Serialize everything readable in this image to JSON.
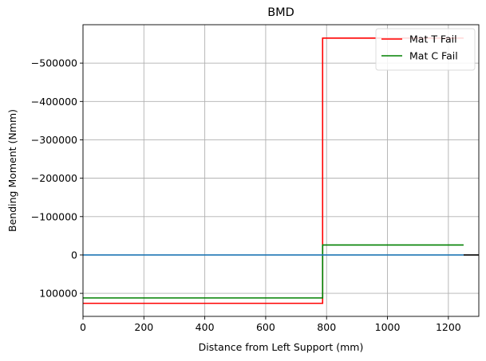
{
  "chart_data": {
    "type": "line",
    "title": "BMD",
    "xlabel": "Distance from Left Support (mm)",
    "ylabel": "Bending Moment (Nmm)",
    "xlim": [
      0,
      1300
    ],
    "ylim": [
      160000,
      -600000
    ],
    "y_inverted": true,
    "grid": true,
    "legend_position": "top-right",
    "x_ticks": [
      0,
      200,
      400,
      600,
      800,
      1000,
      1200
    ],
    "x_tick_labels": [
      "0",
      "200",
      "400",
      "600",
      "800",
      "1000",
      "1200"
    ],
    "y_ticks": [
      -500000,
      -400000,
      -300000,
      -200000,
      -100000,
      0,
      100000
    ],
    "y_tick_labels": [
      "−500000",
      "−400000",
      "−300000",
      "−200000",
      "−100000",
      "0",
      "100000"
    ],
    "series": [
      {
        "name": "Mat T Fail",
        "color": "#ff0000",
        "in_legend": true,
        "x": [
          0,
          787,
          787,
          1250
        ],
        "y": [
          126000,
          126000,
          -565000,
          -565000
        ]
      },
      {
        "name": "Mat C Fail",
        "color": "#008000",
        "in_legend": true,
        "x": [
          0,
          787,
          787,
          1250
        ],
        "y": [
          112000,
          112000,
          -26000,
          -26000
        ]
      },
      {
        "name": "",
        "color": "#1f77b4",
        "in_legend": false,
        "x": [
          0,
          1250
        ],
        "y": [
          0,
          0
        ]
      },
      {
        "name": "",
        "color": "#000000",
        "in_legend": false,
        "x": [
          1250,
          1300
        ],
        "y": [
          0,
          0
        ]
      }
    ]
  }
}
